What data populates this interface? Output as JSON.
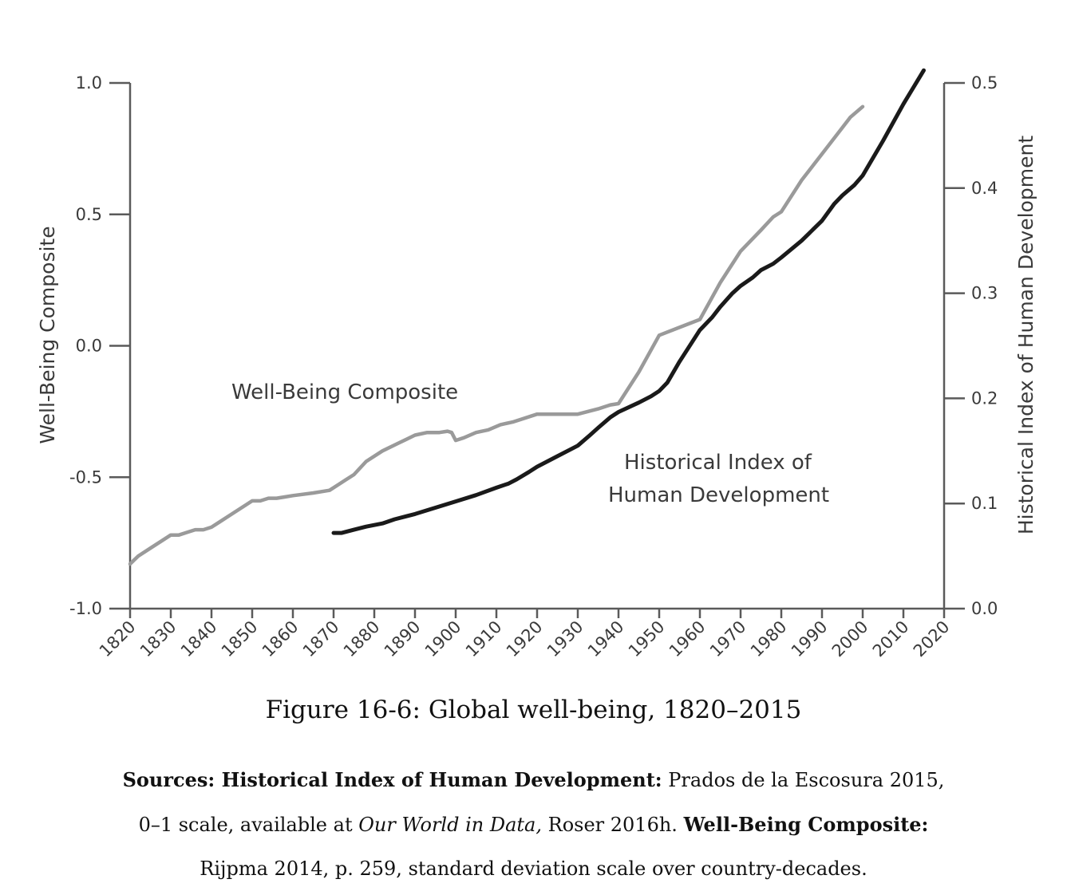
{
  "chart_data": {
    "type": "line",
    "title": "Figure 16-6: Global well-being, 1820–2015",
    "xlabel": "",
    "ylabel_left": "Well-Being Composite",
    "ylabel_right": "Historical Index of Human Development",
    "xlim": [
      1820,
      2020
    ],
    "ylim_left": [
      -1.0,
      1.0
    ],
    "ylim_right": [
      0.0,
      0.5
    ],
    "x_ticks": [
      "1820",
      "1830",
      "1840",
      "1850",
      "1860",
      "1870",
      "1880",
      "1890",
      "1900",
      "1910",
      "1920",
      "1930",
      "1940",
      "1950",
      "1960",
      "1970",
      "1980",
      "1990",
      "2000",
      "2010",
      "2020"
    ],
    "y_left_ticks": [
      "1.0",
      "0.5",
      "0.0",
      "-0.5",
      "-1.0"
    ],
    "y_right_ticks": [
      "0.5",
      "0.4",
      "0.3",
      "0.2",
      "0.1",
      "0.0"
    ],
    "annotations": {
      "wellbeing": "Well-Being Composite",
      "hihd_line1": "Historical Index of",
      "hihd_line2": "Human Development"
    },
    "series": [
      {
        "name": "Well-Being Composite",
        "axis": "left",
        "color": "#9a9a9a",
        "x": [
          1820,
          1822,
          1825,
          1828,
          1830,
          1832,
          1834,
          1836,
          1838,
          1840,
          1842,
          1845,
          1848,
          1850,
          1852,
          1854,
          1856,
          1858,
          1860,
          1865,
          1869,
          1871,
          1873,
          1875,
          1878,
          1882,
          1886,
          1890,
          1893,
          1896,
          1898,
          1899,
          1900,
          1902,
          1905,
          1908,
          1911,
          1914,
          1920,
          1930,
          1935,
          1938,
          1940,
          1945,
          1950,
          1955,
          1960,
          1965,
          1970,
          1975,
          1978,
          1980,
          1985,
          1990,
          1995,
          1997,
          2000
        ],
        "values": [
          -0.83,
          -0.8,
          -0.77,
          -0.74,
          -0.72,
          -0.72,
          -0.71,
          -0.7,
          -0.7,
          -0.69,
          -0.67,
          -0.64,
          -0.61,
          -0.59,
          -0.59,
          -0.58,
          -0.58,
          -0.575,
          -0.57,
          -0.56,
          -0.55,
          -0.53,
          -0.51,
          -0.49,
          -0.44,
          -0.4,
          -0.37,
          -0.34,
          -0.33,
          -0.33,
          -0.325,
          -0.33,
          -0.36,
          -0.35,
          -0.33,
          -0.32,
          -0.3,
          -0.29,
          -0.26,
          -0.26,
          -0.24,
          -0.225,
          -0.22,
          -0.1,
          0.04,
          0.07,
          0.1,
          0.24,
          0.36,
          0.44,
          0.49,
          0.51,
          0.63,
          0.73,
          0.83,
          0.87,
          0.91
        ]
      },
      {
        "name": "Historical Index of Human Development",
        "axis": "right",
        "color": "#1a1a1a",
        "x": [
          1870,
          1872,
          1875,
          1878,
          1882,
          1885,
          1890,
          1895,
          1900,
          1905,
          1910,
          1913,
          1915,
          1918,
          1920,
          1925,
          1930,
          1933,
          1935,
          1938,
          1940,
          1945,
          1948,
          1950,
          1952,
          1955,
          1960,
          1963,
          1965,
          1968,
          1970,
          1973,
          1975,
          1978,
          1980,
          1985,
          1990,
          1993,
          1995,
          1998,
          2000,
          2005,
          2010,
          2015
        ],
        "values": [
          0.072,
          0.072,
          0.075,
          0.078,
          0.081,
          0.085,
          0.09,
          0.096,
          0.102,
          0.108,
          0.115,
          0.119,
          0.123,
          0.13,
          0.135,
          0.145,
          0.155,
          0.165,
          0.172,
          0.182,
          0.187,
          0.196,
          0.202,
          0.207,
          0.215,
          0.235,
          0.265,
          0.277,
          0.287,
          0.3,
          0.307,
          0.315,
          0.322,
          0.328,
          0.334,
          0.35,
          0.369,
          0.385,
          0.393,
          0.403,
          0.412,
          0.445,
          0.48,
          0.512
        ]
      }
    ]
  },
  "caption": "Figure 16-6: Global well-being, 1820–2015",
  "sources": {
    "l1_b1": "Sources: Historical Index of Human Development:",
    "l1_t": " Prados de la Escosura 2015,",
    "l2_t": "0–1 scale, available at ",
    "l2_i": "Our World in Data,",
    "l2_t2": " Roser 2016h. ",
    "l2_b": "Well-Being Composite:",
    "l3_t": "Rijpma 2014, p. 259, standard deviation scale over country-decades."
  }
}
